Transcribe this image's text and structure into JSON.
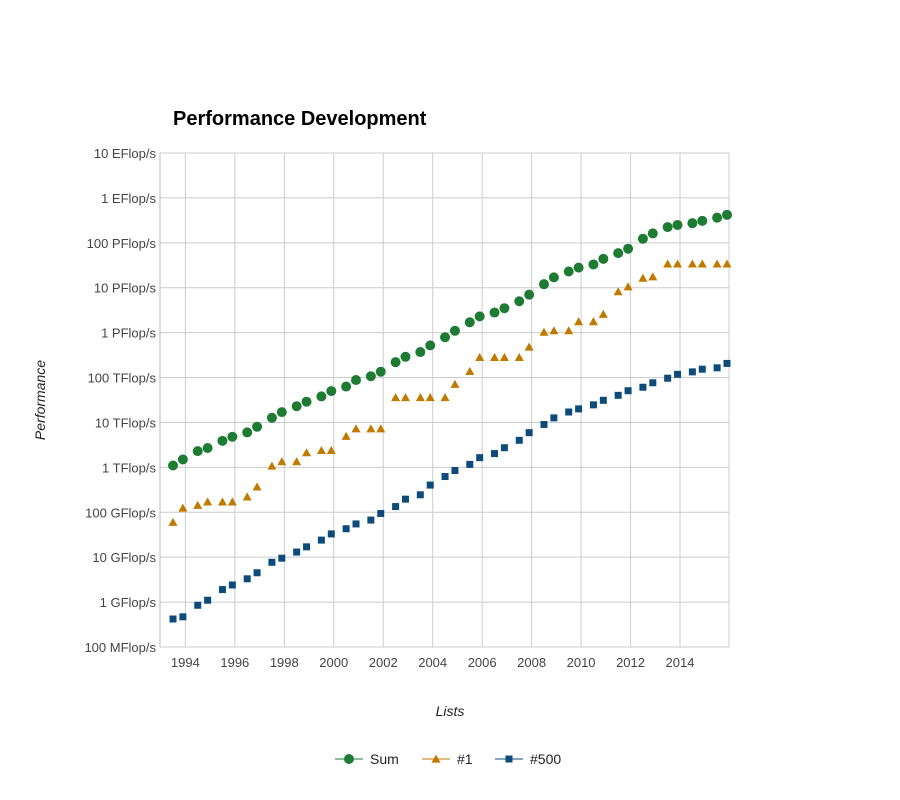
{
  "chart_data": {
    "type": "scatter",
    "title": "Performance Development",
    "xlabel": "Lists",
    "ylabel": "Performance",
    "y_scale": "log",
    "ylim": [
      "100 MFlop/s",
      "10 EFlop/s"
    ],
    "y_ticks": [
      "10 EFlop/s",
      "1 EFlop/s",
      "100 PFlop/s",
      "10 PFlop/s",
      "1 PFlop/s",
      "100 TFlop/s",
      "10 TFlop/s",
      "1 TFlop/s",
      "100 GFlop/s",
      "10 GFlop/s",
      "1 GFlop/s",
      "100 MFlop/s"
    ],
    "x_ticks": [
      "1994",
      "1996",
      "1998",
      "2000",
      "2002",
      "2004",
      "2006",
      "2008",
      "2010",
      "2012",
      "2014"
    ],
    "x": [
      "1993.5",
      "1993.9",
      "1994.5",
      "1994.9",
      "1995.5",
      "1995.9",
      "1996.5",
      "1996.9",
      "1997.5",
      "1997.9",
      "1998.5",
      "1998.9",
      "1999.5",
      "1999.9",
      "2000.5",
      "2000.9",
      "2001.5",
      "2001.9",
      "2002.5",
      "2002.9",
      "2003.5",
      "2003.9",
      "2004.5",
      "2004.9",
      "2005.5",
      "2005.9",
      "2006.5",
      "2006.9",
      "2007.5",
      "2007.9",
      "2008.5",
      "2008.9",
      "2009.5",
      "2009.9",
      "2010.5",
      "2010.9",
      "2011.5",
      "2011.9",
      "2012.5",
      "2012.9",
      "2013.5",
      "2013.9",
      "2014.5",
      "2014.9",
      "2015.5",
      "2015.9"
    ],
    "grid": true,
    "legend_position": "bottom",
    "series": [
      {
        "name": "Sum",
        "unit": "GFlop/s",
        "color": "#1e7b34",
        "marker": "circle",
        "values": [
          1100,
          1500,
          2300,
          2700,
          3900,
          4800,
          6000,
          8000,
          12700,
          17000,
          23000,
          29000,
          38000,
          50000,
          63000,
          88000,
          107000,
          135000,
          220000,
          290000,
          370000,
          520000,
          790000,
          1100000,
          1700000,
          2300000,
          2800000,
          3500000,
          5000000,
          7000000,
          12000000,
          17000000,
          23000000,
          28000000,
          33000000,
          44000000,
          59000000,
          74000000,
          123000000,
          162000000,
          224000000,
          250000000,
          274000000,
          309000000,
          363000000,
          420000000
        ]
      },
      {
        "name": "#1",
        "unit": "GFlop/s",
        "color": "#c07a00",
        "marker": "triangle",
        "values": [
          60,
          124,
          143,
          170,
          170,
          170,
          220,
          368,
          1068,
          1338,
          1338,
          2121,
          2379,
          2379,
          4938,
          7226,
          7226,
          7226,
          35860,
          35860,
          35860,
          35860,
          35860,
          70720,
          136800,
          280600,
          280600,
          280600,
          280600,
          478200,
          1026000,
          1105000,
          1105000,
          1759000,
          1759000,
          2566000,
          8162000,
          10510000,
          16320000,
          17590000,
          33860000,
          33860000,
          33860000,
          33860000,
          33860000,
          33860000
        ]
      },
      {
        "name": "#500",
        "unit": "GFlop/s",
        "color": "#0d4c7a",
        "marker": "square",
        "values": [
          0.42,
          0.47,
          0.85,
          1.1,
          1.9,
          2.4,
          3.3,
          4.5,
          7.7,
          9.5,
          13.0,
          17.0,
          24.0,
          33.0,
          43.0,
          55.0,
          67.0,
          94.0,
          134.0,
          196.0,
          245.0,
          403.0,
          625.0,
          851.0,
          1166.0,
          1646.0,
          2026.0,
          2737.0,
          4005.0,
          5929.0,
          9000.0,
          12640.0,
          17100.0,
          20050.0,
          24670.0,
          31120.0,
          40190.0,
          50940.0,
          60830.0,
          76500.0,
          96620.0,
          117800.0,
          133700.0,
          153400.0,
          164700.0,
          206300.0
        ]
      }
    ]
  }
}
